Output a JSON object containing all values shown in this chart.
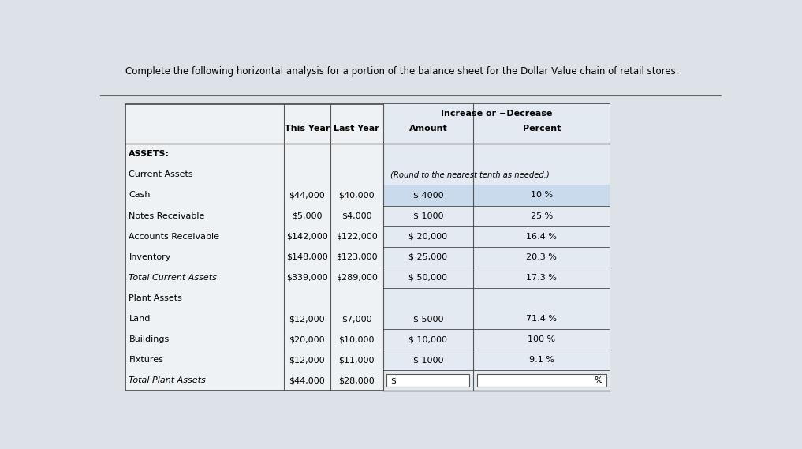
{
  "title": "Complete the following horizontal analysis for a portion of the balance sheet for the Dollar Value chain of retail stores.",
  "page_bg": "#dde2e8",
  "table_bg": "#e8ecf0",
  "col_right_bg": "#dde4ec",
  "highlight_color": "#c5d8ed",
  "input_box_color": "#ffffff",
  "header_span": "Increase or −Decrease",
  "round_note": "(Round to the nearest tenth as needed.)",
  "col_headers": [
    "This Year",
    "Last Year",
    "Amount",
    "Percent"
  ],
  "rows": [
    {
      "label": "ASSETS:",
      "bold": true,
      "italic": false,
      "this_year": "",
      "last_year": "",
      "amount": "",
      "percent": "",
      "amount_highlight": false,
      "percent_highlight": false,
      "show_hline": false,
      "amount_input": false,
      "percent_input": false
    },
    {
      "label": "Current Assets",
      "bold": false,
      "italic": false,
      "this_year": "",
      "last_year": "",
      "amount": "",
      "percent": "",
      "amount_highlight": false,
      "percent_highlight": false,
      "show_hline": false,
      "amount_input": false,
      "percent_input": false
    },
    {
      "label": "Cash",
      "bold": false,
      "italic": false,
      "this_year": "$44,000",
      "last_year": "$40,000",
      "amount": "$ 4000",
      "percent": "10 %",
      "amount_highlight": true,
      "percent_highlight": true,
      "show_hline": true,
      "amount_input": false,
      "percent_input": false
    },
    {
      "label": "Notes Receivable",
      "bold": false,
      "italic": false,
      "this_year": "$5,000",
      "last_year": "$4,000",
      "amount": "$ 1000",
      "percent": "25 %",
      "amount_highlight": false,
      "percent_highlight": false,
      "show_hline": true,
      "amount_input": false,
      "percent_input": false
    },
    {
      "label": "Accounts Receivable",
      "bold": false,
      "italic": false,
      "this_year": "$142,000",
      "last_year": "$122,000",
      "amount": "$ 20,000",
      "percent": "16.4 %",
      "amount_highlight": false,
      "percent_highlight": false,
      "show_hline": true,
      "amount_input": false,
      "percent_input": false
    },
    {
      "label": "Inventory",
      "bold": false,
      "italic": false,
      "this_year": "$148,000",
      "last_year": "$123,000",
      "amount": "$ 25,000",
      "percent": "20.3 %",
      "amount_highlight": false,
      "percent_highlight": false,
      "show_hline": true,
      "amount_input": false,
      "percent_input": false
    },
    {
      "label": "Total Current Assets",
      "bold": false,
      "italic": true,
      "this_year": "$339,000",
      "last_year": "$289,000",
      "amount": "$ 50,000",
      "percent": "17.3 %",
      "amount_highlight": false,
      "percent_highlight": false,
      "show_hline": true,
      "amount_input": false,
      "percent_input": false
    },
    {
      "label": "Plant Assets",
      "bold": false,
      "italic": false,
      "this_year": "",
      "last_year": "",
      "amount": "",
      "percent": "",
      "amount_highlight": false,
      "percent_highlight": false,
      "show_hline": false,
      "amount_input": false,
      "percent_input": false
    },
    {
      "label": "Land",
      "bold": false,
      "italic": false,
      "this_year": "$12,000",
      "last_year": "$7,000",
      "amount": "$ 5000",
      "percent": "71.4 %",
      "amount_highlight": false,
      "percent_highlight": false,
      "show_hline": true,
      "amount_input": false,
      "percent_input": false
    },
    {
      "label": "Buildings",
      "bold": false,
      "italic": false,
      "this_year": "$20,000",
      "last_year": "$10,000",
      "amount": "$ 10,000",
      "percent": "100 %",
      "amount_highlight": false,
      "percent_highlight": false,
      "show_hline": true,
      "amount_input": false,
      "percent_input": false
    },
    {
      "label": "Fixtures",
      "bold": false,
      "italic": false,
      "this_year": "$12,000",
      "last_year": "$11,000",
      "amount": "$ 1000",
      "percent": "9.1 %",
      "amount_highlight": false,
      "percent_highlight": false,
      "show_hline": true,
      "amount_input": false,
      "percent_input": false
    },
    {
      "label": "Total Plant Assets",
      "bold": false,
      "italic": true,
      "this_year": "$44,000",
      "last_year": "$28,000",
      "amount": "$",
      "percent": "%",
      "amount_highlight": false,
      "percent_highlight": false,
      "show_hline": true,
      "amount_input": true,
      "percent_input": true
    }
  ]
}
